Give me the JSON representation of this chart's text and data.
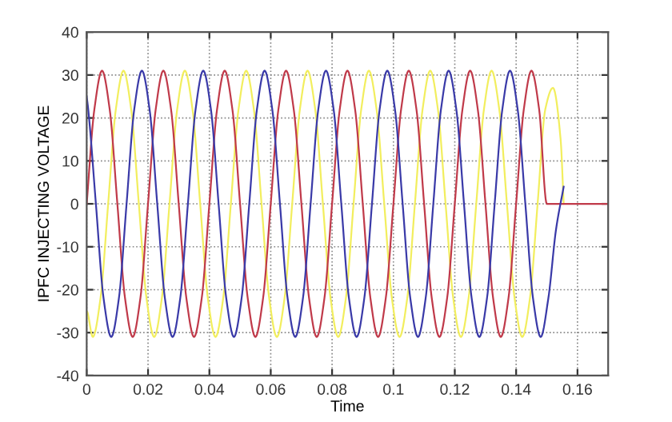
{
  "chart_data": {
    "type": "line",
    "xlabel": "Time",
    "ylabel": "IPFC INJECTING VOLTAGE",
    "xlim": [
      0,
      0.17
    ],
    "ylim": [
      -40,
      40
    ],
    "xticks": [
      0,
      0.02,
      0.04,
      0.06,
      0.08,
      0.1,
      0.12,
      0.14,
      0.16
    ],
    "yticks": [
      -40,
      -30,
      -20,
      -10,
      0,
      10,
      20,
      30,
      40
    ],
    "grid": true,
    "marker": "none",
    "line_style": "solid",
    "legend": false,
    "series": [
      {
        "color": "#f2ee5e",
        "x": [
          0,
          0.002,
          0.0045,
          0.007,
          0.0095,
          0.012,
          0.0145,
          0.017,
          0.0195,
          0.022,
          0.0245,
          0.027,
          0.0295,
          0.032,
          0.0345,
          0.037,
          0.0395,
          0.042,
          0.0445,
          0.047,
          0.0495,
          0.052,
          0.0545,
          0.057,
          0.0595,
          0.062,
          0.0645,
          0.067,
          0.0695,
          0.072,
          0.0745,
          0.077,
          0.0795,
          0.082,
          0.0845,
          0.087,
          0.0895,
          0.092,
          0.0945,
          0.097,
          0.0995,
          0.102,
          0.1045,
          0.107,
          0.1095,
          0.112,
          0.1145,
          0.117,
          0.1195,
          0.122,
          0.1245,
          0.127,
          0.1295,
          0.132,
          0.1345,
          0.137,
          0.1395,
          0.142,
          0.1445,
          0.147,
          0.1495,
          0.152,
          0.1545,
          0.1555
        ],
        "values": [
          -25,
          -31,
          -22,
          0,
          22,
          31,
          22,
          0,
          -22,
          -31,
          -22,
          0,
          22,
          31,
          22,
          0,
          -22,
          -31,
          -22,
          0,
          22,
          31,
          22,
          0,
          -22,
          -31,
          -22,
          0,
          22,
          31,
          22,
          0,
          -22,
          -31,
          -22,
          0,
          22,
          31,
          22,
          0,
          -22,
          -31,
          -22,
          0,
          22,
          31,
          22,
          0,
          -22,
          -31,
          -22,
          0,
          22,
          31,
          22,
          0,
          -22,
          -31,
          -22,
          0,
          22,
          27,
          15,
          0
        ]
      },
      {
        "color": "#c03a4a",
        "x": [
          0,
          0.0025,
          0.005,
          0.0075,
          0.01,
          0.0125,
          0.015,
          0.0175,
          0.02,
          0.0225,
          0.025,
          0.0275,
          0.03,
          0.0325,
          0.035,
          0.0375,
          0.04,
          0.0425,
          0.045,
          0.0475,
          0.05,
          0.0525,
          0.055,
          0.0575,
          0.06,
          0.0625,
          0.065,
          0.0675,
          0.07,
          0.0725,
          0.075,
          0.0775,
          0.08,
          0.0825,
          0.085,
          0.0875,
          0.09,
          0.0925,
          0.095,
          0.0975,
          0.1,
          0.1025,
          0.105,
          0.1075,
          0.11,
          0.1125,
          0.115,
          0.1175,
          0.12,
          0.1225,
          0.125,
          0.1275,
          0.13,
          0.1325,
          0.135,
          0.1375,
          0.14,
          0.1425,
          0.145,
          0.1475,
          0.15,
          0.17
        ],
        "values": [
          0,
          22,
          31,
          22,
          0,
          -22,
          -31,
          -22,
          0,
          22,
          31,
          22,
          0,
          -22,
          -31,
          -22,
          0,
          22,
          31,
          22,
          0,
          -22,
          -31,
          -22,
          0,
          22,
          31,
          22,
          0,
          -22,
          -31,
          -22,
          0,
          22,
          31,
          22,
          0,
          -22,
          -31,
          -22,
          0,
          22,
          31,
          22,
          0,
          -22,
          -31,
          -22,
          0,
          22,
          31,
          22,
          0,
          -22,
          -31,
          -22,
          0,
          22,
          31,
          22,
          0,
          0
        ]
      },
      {
        "color": "#3a3aa8",
        "x": [
          0,
          0.0005,
          0.003,
          0.0055,
          0.008,
          0.0105,
          0.013,
          0.0155,
          0.018,
          0.0205,
          0.023,
          0.0255,
          0.028,
          0.0305,
          0.033,
          0.0355,
          0.038,
          0.0405,
          0.043,
          0.0455,
          0.048,
          0.0505,
          0.053,
          0.0555,
          0.058,
          0.0605,
          0.063,
          0.0655,
          0.068,
          0.0705,
          0.073,
          0.0755,
          0.078,
          0.0805,
          0.083,
          0.0855,
          0.088,
          0.0905,
          0.093,
          0.0955,
          0.098,
          0.1005,
          0.103,
          0.1055,
          0.108,
          0.1105,
          0.113,
          0.1155,
          0.118,
          0.1205,
          0.123,
          0.1255,
          0.128,
          0.1305,
          0.133,
          0.1355,
          0.138,
          0.1405,
          0.143,
          0.1455,
          0.148,
          0.1505,
          0.153,
          0.1555
        ],
        "values": [
          25,
          22,
          0,
          -22,
          -31,
          -22,
          0,
          22,
          31,
          22,
          0,
          -22,
          -31,
          -22,
          0,
          22,
          31,
          22,
          0,
          -22,
          -31,
          -22,
          0,
          22,
          31,
          22,
          0,
          -22,
          -31,
          -22,
          0,
          22,
          31,
          22,
          0,
          -22,
          -31,
          -22,
          0,
          22,
          31,
          22,
          0,
          -22,
          -31,
          -22,
          0,
          22,
          31,
          22,
          0,
          -22,
          -31,
          -22,
          0,
          22,
          31,
          22,
          0,
          -22,
          -31,
          -22,
          -6,
          4
        ]
      }
    ]
  }
}
